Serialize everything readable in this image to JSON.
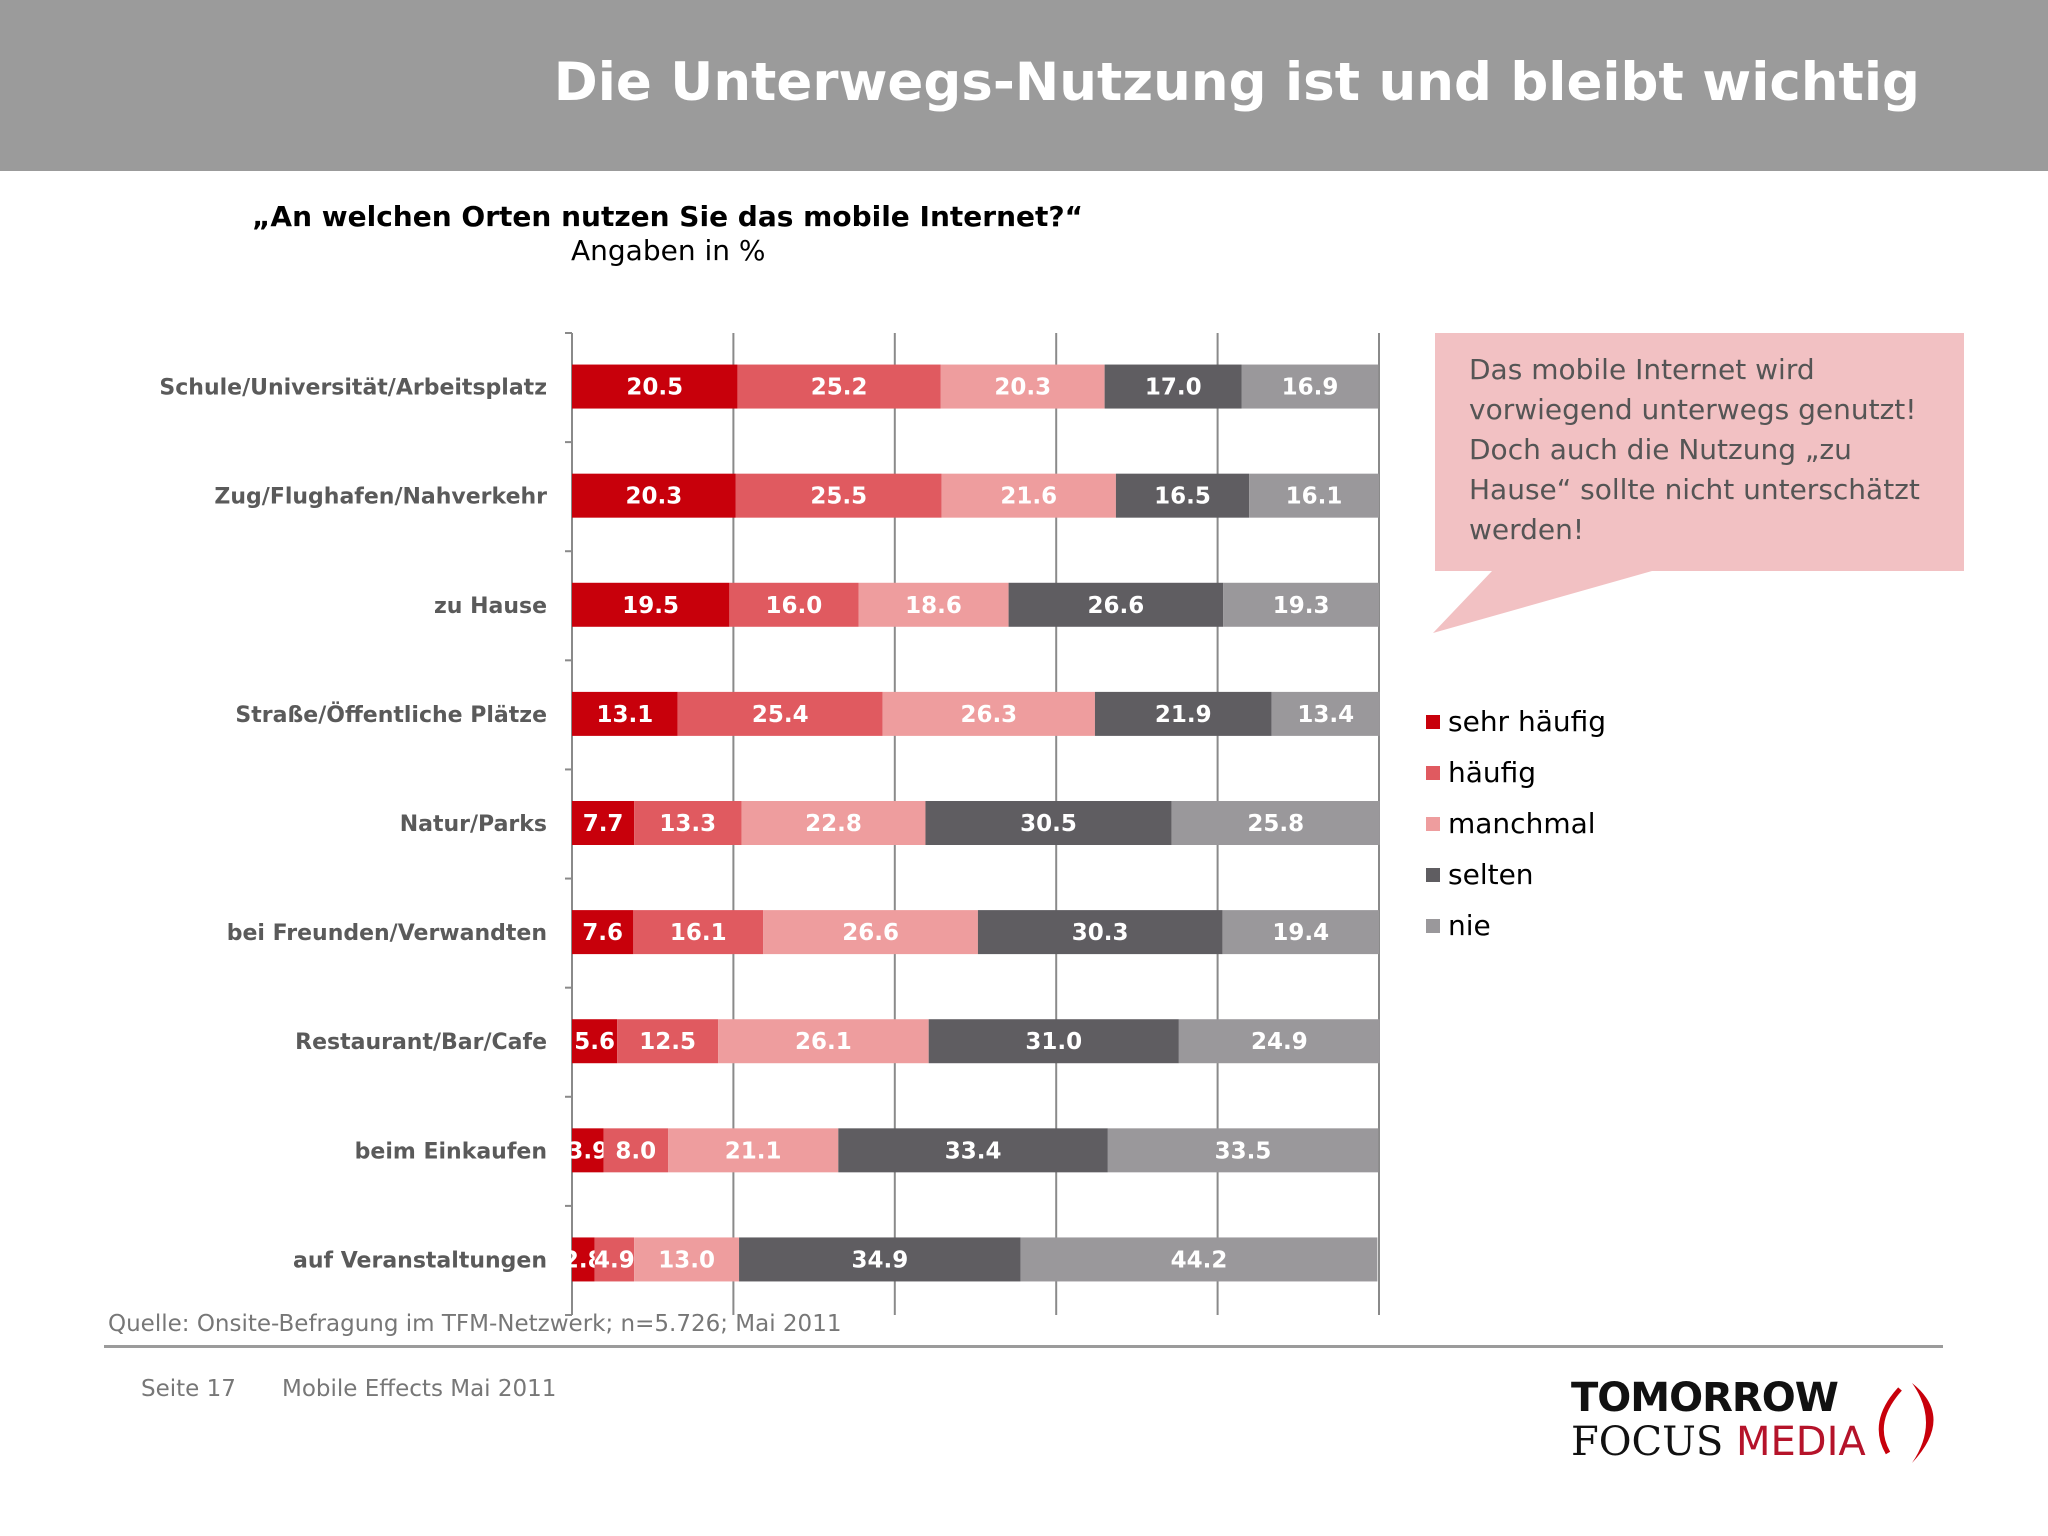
{
  "header": {
    "title": "Die Unterwegs-Nutzung ist und bleibt wichtig"
  },
  "question": "„An welchen Orten nutzen Sie das mobile Internet?“",
  "subtitle": "Angaben in %",
  "callout": {
    "text": "Das mobile Internet wird vorwiegend unterwegs genutzt! Doch auch die Nutzung „zu Hause“ sollte nicht unterschätzt werden!",
    "color": "#f2c1c3"
  },
  "chart_data": {
    "type": "bar",
    "orientation": "horizontal",
    "stacked": true,
    "xlim": [
      0,
      100
    ],
    "grid": true,
    "legend_position": "right",
    "categories": [
      "Schule/Universität/Arbeitsplatz",
      "Zug/Flughafen/Nahverkehr",
      "zu Hause",
      "Straße/Öffentliche Plätze",
      "Natur/Parks",
      "bei Freunden/Verwandten",
      "Restaurant/Bar/Cafe",
      "beim Einkaufen",
      "auf Veranstaltungen"
    ],
    "series": [
      {
        "name": "sehr häufig",
        "color": "#c8000b",
        "values": [
          20.5,
          20.3,
          19.5,
          13.1,
          7.7,
          7.6,
          5.6,
          3.9,
          2.8
        ]
      },
      {
        "name": "häufig",
        "color": "#e05a60",
        "values": [
          25.2,
          25.5,
          16.0,
          25.4,
          13.3,
          16.1,
          12.5,
          8.0,
          4.9
        ]
      },
      {
        "name": "manchmal",
        "color": "#ee9d9e",
        "values": [
          20.3,
          21.6,
          18.6,
          26.3,
          22.8,
          26.6,
          26.1,
          21.1,
          13.0
        ]
      },
      {
        "name": "selten",
        "color": "#5f5d61",
        "values": [
          17.0,
          16.5,
          26.6,
          21.9,
          30.5,
          30.3,
          31.0,
          33.4,
          34.9
        ]
      },
      {
        "name": "nie",
        "color": "#9a989b",
        "values": [
          16.9,
          16.1,
          19.3,
          13.4,
          25.8,
          19.4,
          24.9,
          33.5,
          44.2
        ]
      }
    ]
  },
  "source": "Quelle: Onsite-Befragung im TFM-Netzwerk; n=5.726; Mai 2011",
  "footer": {
    "page": "Seite 17",
    "document": "Mobile Effects Mai 2011"
  },
  "logo": {
    "line1": "TOMORROW",
    "line2a": "FOCUS",
    "line2b": "MEDIA"
  }
}
